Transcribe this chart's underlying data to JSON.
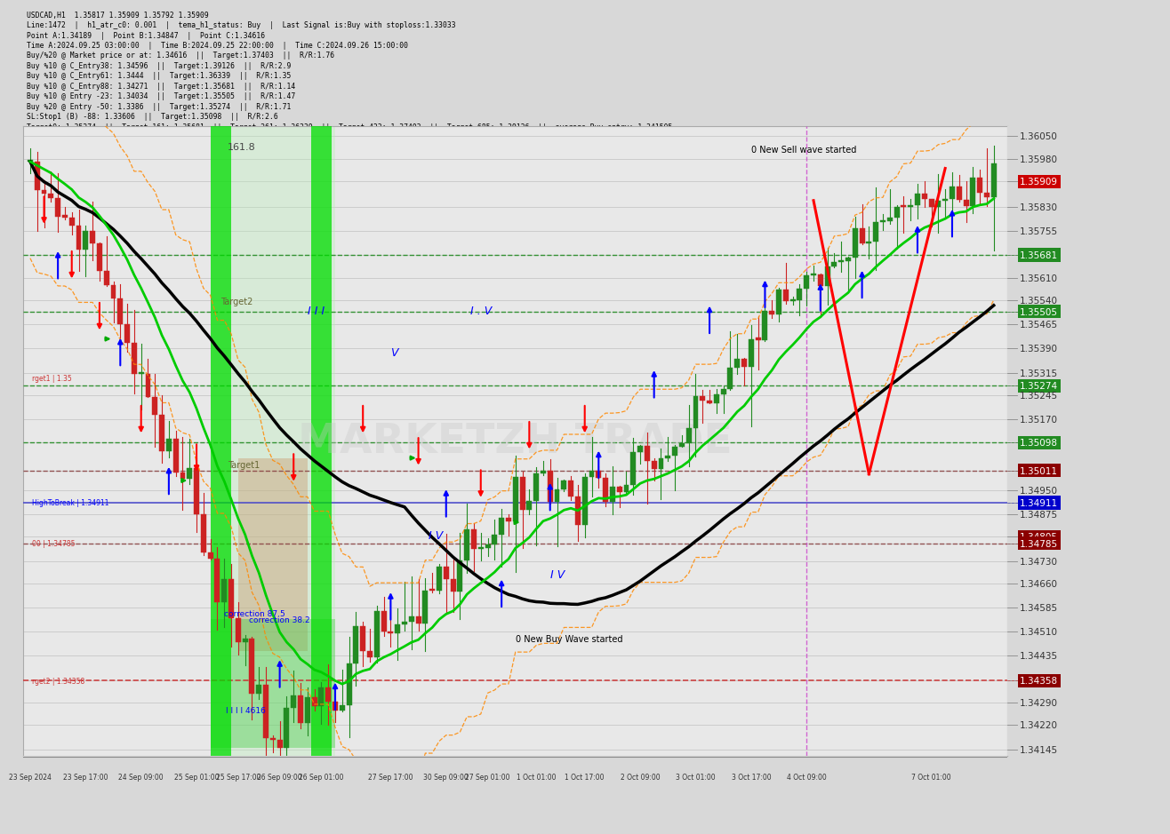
{
  "title": "USDCAD,H1  1.35817 1.35909 1.35792 1.35909",
  "info_lines": [
    "Line:1472  |  h1_atr_c0: 0.001  |  tema_h1_status: Buy  |  Last Signal is:Buy with stoploss:1.33033",
    "Point A:1.34189  |  Point B:1.34847  |  Point C:1.34616",
    "Time A:2024.09.25 03:00:00  |  Time B:2024.09.25 22:00:00  |  Time C:2024.09.26 15:00:00",
    "Buy/%20 @ Market price or at: 1.34616  ||  Target:1.37403  ||  R/R:1.76",
    "Buy %10 @ C_Entry38: 1.34596  ||  Target:1.39126  ||  R/R:2.9",
    "Buy %10 @ C_Entry61: 1.3444  ||  Target:1.36339  ||  R/R:1.35",
    "Buy %10 @ C_Entry88: 1.34271  ||  Target:1.35681  ||  R/R:1.14",
    "Buy %10 @ Entry -23: 1.34034  ||  Target:1.35505  ||  R/R:1.47",
    "Buy %20 @ Entry -50: 1.3386  ||  Target:1.35274  ||  R/R:1.71",
    "SL:Stop1 (B) -88: 1.33606  ||  Target:1.35098  ||  R/R:2.6",
    "Target0: 1.35274  ||  Target 161: 1.35681  ||  Target 261: 1.36339  ||  Target 423: 1.37403  ||  Target 685: 1.39126  ||  average_Buy_entry: 1.341505"
  ],
  "y_min": 1.34145,
  "y_max": 1.3606,
  "price_labels": [
    1.3605,
    1.3598,
    1.35909,
    1.3583,
    1.35755,
    1.35681,
    1.3561,
    1.3554,
    1.35505,
    1.35465,
    1.3539,
    1.35315,
    1.35274,
    1.35245,
    1.3517,
    1.35098,
    1.35011,
    1.3495,
    1.34911,
    1.34875,
    1.34805,
    1.34785,
    1.3473,
    1.3466,
    1.34585,
    1.3451,
    1.34435,
    1.34358,
    1.3429,
    1.3422,
    1.34145
  ],
  "highlighted_labels": {
    "1.35909": "#cc0000",
    "1.35681": "#228B22",
    "1.35505": "#228B22",
    "1.35274": "#228B22",
    "1.35098": "#228B22",
    "1.35011": "#8B0000",
    "1.34911": "#0000cc",
    "1.34805": "#8B0000",
    "1.34785": "#8B0000",
    "1.34358": "#8B0000"
  },
  "hlines": [
    {
      "price": 1.35681,
      "color": "#228B22",
      "ls": "--",
      "lw": 1.0
    },
    {
      "price": 1.35505,
      "color": "#228B22",
      "ls": "--",
      "lw": 1.0
    },
    {
      "price": 1.35274,
      "color": "#228B22",
      "ls": "--",
      "lw": 1.0
    },
    {
      "price": 1.35098,
      "color": "#228B22",
      "ls": "--",
      "lw": 1.0
    },
    {
      "price": 1.35011,
      "color": "#8B4444",
      "ls": "--",
      "lw": 1.0
    },
    {
      "price": 1.34911,
      "color": "#4444cc",
      "ls": "-",
      "lw": 1.2
    },
    {
      "price": 1.34785,
      "color": "#8B4444",
      "ls": "--",
      "lw": 1.0
    },
    {
      "price": 1.34358,
      "color": "#cc3333",
      "ls": "--",
      "lw": 1.2
    }
  ],
  "bg_color": "#d8d8d8",
  "chart_bg": "#e8e8e8",
  "watermark": "MARKETZH TRADE",
  "n_bars": 140,
  "x_tick_labels": [
    "23 Sep 2024",
    "23 Sep 17:00",
    "24 Sep 09:00",
    "25 Sep 01:00",
    "25 Sep 17:00",
    "26 Sep 09:00",
    "26 Sep 01:00",
    "27 Sep 17:00",
    "30 Sep 09:00",
    "27 Sep 01:00",
    "1 Oct 01:00",
    "1 Oct 17:00",
    "2 Oct 09:00",
    "3 Oct 01:00",
    "3 Oct 17:00",
    "4 Oct 09:00",
    "7 Oct 01:00"
  ],
  "x_tick_pos": [
    0,
    8,
    16,
    24,
    30,
    36,
    42,
    52,
    60,
    66,
    73,
    80,
    88,
    96,
    104,
    112,
    130
  ]
}
